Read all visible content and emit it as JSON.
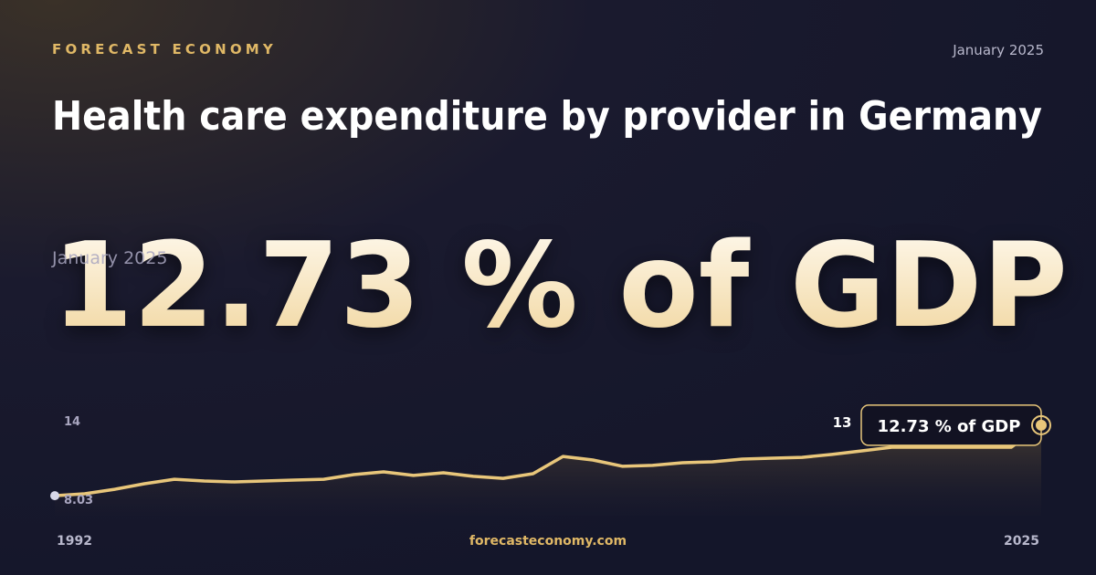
{
  "header": {
    "brand": "FORECAST ECONOMY",
    "date": "January 2025",
    "title": "Health care expenditure by provider in Germany",
    "headline": "12.73 % of GDP",
    "headline_date": "January 2025"
  },
  "footer": {
    "site": "forecasteconomy.com"
  },
  "chart_data": {
    "type": "line",
    "x": [
      1992,
      1993,
      1994,
      1995,
      1996,
      1997,
      1998,
      1999,
      2000,
      2001,
      2002,
      2003,
      2004,
      2005,
      2006,
      2007,
      2008,
      2009,
      2010,
      2011,
      2012,
      2013,
      2014,
      2015,
      2016,
      2017,
      2018,
      2019,
      2020,
      2021,
      2022,
      2023,
      2024,
      2025
    ],
    "values": [
      8.03,
      8.16,
      8.46,
      8.83,
      9.13,
      9.01,
      8.95,
      9.01,
      9.07,
      9.13,
      9.44,
      9.62,
      9.38,
      9.56,
      9.32,
      9.19,
      9.5,
      10.65,
      10.41,
      9.99,
      10.05,
      10.23,
      10.29,
      10.47,
      10.53,
      10.59,
      10.78,
      11.02,
      11.26,
      11.26,
      11.26,
      11.26,
      11.26,
      12.73
    ],
    "value_labels": [
      "8.03",
      null,
      null,
      null,
      null,
      null,
      null,
      null,
      null,
      null,
      null,
      null,
      null,
      null,
      null,
      null,
      null,
      null,
      null,
      null,
      null,
      null,
      null,
      null,
      null,
      null,
      null,
      null,
      null,
      null,
      null,
      null,
      null,
      "12.73 % of GDP"
    ],
    "color": "#e8c67a",
    "annotation": "13",
    "xlim": [
      1992,
      2025
    ],
    "xticks": [
      1992,
      2025
    ],
    "ylim": [
      6.7,
      14
    ],
    "yticks": [
      14
    ]
  }
}
